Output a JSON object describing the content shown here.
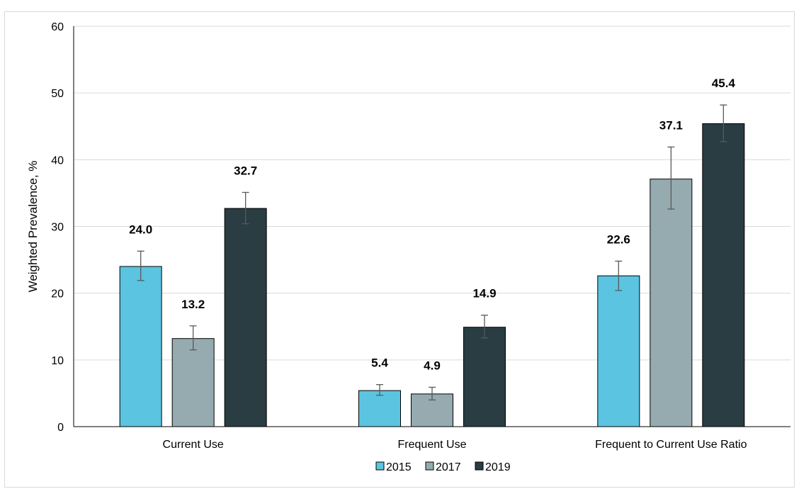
{
  "chart_data": {
    "type": "bar",
    "title": "",
    "xlabel": "",
    "ylabel": "Weighted Prevalence, %",
    "ylim": [
      0,
      60
    ],
    "yticks": [
      "0",
      "10",
      "20",
      "30",
      "40",
      "50",
      "60"
    ],
    "grid": true,
    "legend_position": "bottom",
    "categories": [
      "Current Use",
      "Frequent Use",
      "Frequent to Current Use Ratio"
    ],
    "series": [
      {
        "name": "2015",
        "color": "#5bc4e0",
        "values": [
          24.0,
          5.4,
          22.6
        ],
        "labels": [
          "24.0",
          "5.4",
          "22.6"
        ],
        "err_low": [
          21.9,
          4.7,
          20.4
        ],
        "err_high": [
          26.3,
          6.3,
          24.8
        ]
      },
      {
        "name": "2017",
        "color": "#95abaf",
        "values": [
          13.2,
          4.9,
          37.1
        ],
        "labels": [
          "13.2",
          "4.9",
          "37.1"
        ],
        "err_low": [
          11.5,
          4.0,
          32.6
        ],
        "err_high": [
          15.1,
          5.9,
          41.9
        ]
      },
      {
        "name": "2019",
        "color": "#293d42",
        "values": [
          32.7,
          14.9,
          45.4
        ],
        "labels": [
          "32.7",
          "14.9",
          "45.4"
        ],
        "err_low": [
          30.4,
          13.3,
          42.7
        ],
        "err_high": [
          35.1,
          16.7,
          48.2
        ]
      }
    ]
  }
}
